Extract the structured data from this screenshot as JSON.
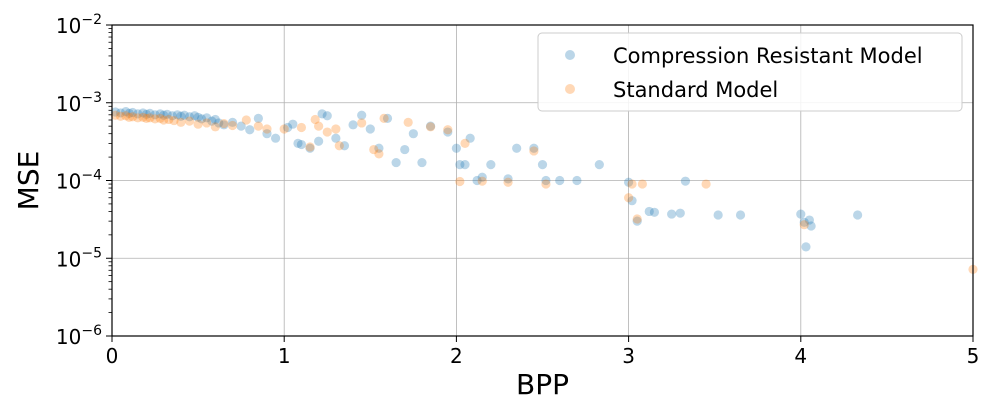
{
  "chart_data": {
    "type": "scatter",
    "xlabel": "BPP",
    "ylabel": "MSE",
    "xlim": [
      0,
      5
    ],
    "ylim": [
      1e-06,
      0.01
    ],
    "yscale": "log",
    "grid": true,
    "legend_position": "top-right",
    "x_ticks": [
      {
        "value": 0,
        "label": "0"
      },
      {
        "value": 1,
        "label": "1"
      },
      {
        "value": 2,
        "label": "2"
      },
      {
        "value": 3,
        "label": "3"
      },
      {
        "value": 4,
        "label": "4"
      },
      {
        "value": 5,
        "label": "5"
      }
    ],
    "y_ticks": [
      {
        "value": 1e-06,
        "base": "10",
        "exp": "−6"
      },
      {
        "value": 1e-05,
        "base": "10",
        "exp": "−5"
      },
      {
        "value": 0.0001,
        "base": "10",
        "exp": "−4"
      },
      {
        "value": 0.001,
        "base": "10",
        "exp": "−3"
      },
      {
        "value": 0.01,
        "base": "10",
        "exp": "−2"
      }
    ],
    "series": [
      {
        "name": "Compression Resistant Model",
        "color": "#1f77b4",
        "points": [
          [
            0.02,
            0.00076
          ],
          [
            0.05,
            0.00074
          ],
          [
            0.08,
            0.00077
          ],
          [
            0.1,
            0.00073
          ],
          [
            0.12,
            0.00075
          ],
          [
            0.15,
            0.00072
          ],
          [
            0.18,
            0.00074
          ],
          [
            0.2,
            0.00071
          ],
          [
            0.22,
            0.00073
          ],
          [
            0.25,
            0.0007
          ],
          [
            0.28,
            0.00072
          ],
          [
            0.3,
            0.00069
          ],
          [
            0.32,
            0.00071
          ],
          [
            0.35,
            0.00068
          ],
          [
            0.38,
            0.0007
          ],
          [
            0.4,
            0.00067
          ],
          [
            0.42,
            0.00069
          ],
          [
            0.45,
            0.00066
          ],
          [
            0.48,
            0.00068
          ],
          [
            0.5,
            0.00065
          ],
          [
            0.52,
            0.00062
          ],
          [
            0.55,
            0.00064
          ],
          [
            0.58,
            0.00058
          ],
          [
            0.6,
            0.00061
          ],
          [
            0.62,
            0.00055
          ],
          [
            0.65,
            0.00052
          ],
          [
            0.7,
            0.00056
          ],
          [
            0.75,
            0.0005
          ],
          [
            0.8,
            0.00045
          ],
          [
            0.85,
            0.00063
          ],
          [
            0.9,
            0.0004
          ],
          [
            0.95,
            0.00035
          ],
          [
            1.02,
            0.00048
          ],
          [
            1.05,
            0.00053
          ],
          [
            1.08,
            0.0003
          ],
          [
            1.1,
            0.00029
          ],
          [
            1.15,
            0.00026
          ],
          [
            1.2,
            0.00032
          ],
          [
            1.22,
            0.00072
          ],
          [
            1.25,
            0.00068
          ],
          [
            1.3,
            0.00035
          ],
          [
            1.35,
            0.00028
          ],
          [
            1.4,
            0.00052
          ],
          [
            1.45,
            0.00069
          ],
          [
            1.5,
            0.00046
          ],
          [
            1.55,
            0.00026
          ],
          [
            1.6,
            0.00063
          ],
          [
            1.65,
            0.00017
          ],
          [
            1.7,
            0.00025
          ],
          [
            1.75,
            0.0004
          ],
          [
            1.8,
            0.00017
          ],
          [
            1.85,
            0.0005
          ],
          [
            1.95,
            0.00042
          ],
          [
            2.0,
            0.00026
          ],
          [
            2.02,
            0.00016
          ],
          [
            2.05,
            0.00016
          ],
          [
            2.08,
            0.00035
          ],
          [
            2.12,
            0.0001
          ],
          [
            2.15,
            0.00011
          ],
          [
            2.2,
            0.00016
          ],
          [
            2.3,
            0.000105
          ],
          [
            2.35,
            0.00026
          ],
          [
            2.45,
            0.00026
          ],
          [
            2.5,
            0.00016
          ],
          [
            2.52,
            0.0001
          ],
          [
            2.6,
            0.0001
          ],
          [
            2.7,
            0.0001
          ],
          [
            2.83,
            0.00016
          ],
          [
            3.0,
            9.5e-05
          ],
          [
            3.02,
            5.5e-05
          ],
          [
            3.05,
            3e-05
          ],
          [
            3.12,
            4e-05
          ],
          [
            3.15,
            3.9e-05
          ],
          [
            3.25,
            3.7e-05
          ],
          [
            3.3,
            3.8e-05
          ],
          [
            3.33,
            9.8e-05
          ],
          [
            3.52,
            3.6e-05
          ],
          [
            3.65,
            3.6e-05
          ],
          [
            4.0,
            3.7e-05
          ],
          [
            4.02,
            2.9e-05
          ],
          [
            4.03,
            1.4e-05
          ],
          [
            4.05,
            3.1e-05
          ],
          [
            4.06,
            2.6e-05
          ],
          [
            4.33,
            3.6e-05
          ]
        ]
      },
      {
        "name": "Standard Model",
        "color": "#ff7f0e",
        "points": [
          [
            0.02,
            0.00069
          ],
          [
            0.05,
            0.00067
          ],
          [
            0.08,
            0.00068
          ],
          [
            0.1,
            0.00065
          ],
          [
            0.12,
            0.00066
          ],
          [
            0.15,
            0.00064
          ],
          [
            0.18,
            0.00065
          ],
          [
            0.2,
            0.00063
          ],
          [
            0.22,
            0.00064
          ],
          [
            0.25,
            0.00062
          ],
          [
            0.28,
            0.00063
          ],
          [
            0.3,
            0.0006
          ],
          [
            0.33,
            0.00061
          ],
          [
            0.36,
            0.00059
          ],
          [
            0.4,
            0.00056
          ],
          [
            0.45,
            0.00058
          ],
          [
            0.5,
            0.00053
          ],
          [
            0.55,
            0.00055
          ],
          [
            0.6,
            0.00049
          ],
          [
            0.65,
            0.00054
          ],
          [
            0.7,
            0.00051
          ],
          [
            0.78,
            0.0006
          ],
          [
            0.85,
            0.0005
          ],
          [
            0.9,
            0.00046
          ],
          [
            1.0,
            0.00046
          ],
          [
            1.1,
            0.00048
          ],
          [
            1.15,
            0.00027
          ],
          [
            1.18,
            0.00061
          ],
          [
            1.2,
            0.0005
          ],
          [
            1.25,
            0.00042
          ],
          [
            1.3,
            0.00046
          ],
          [
            1.32,
            0.00028
          ],
          [
            1.45,
            0.00055
          ],
          [
            1.52,
            0.00025
          ],
          [
            1.55,
            0.00022
          ],
          [
            1.58,
            0.00063
          ],
          [
            1.72,
            0.00056
          ],
          [
            1.85,
            0.00049
          ],
          [
            1.95,
            0.00045
          ],
          [
            2.02,
            9.7e-05
          ],
          [
            2.05,
            0.0003
          ],
          [
            2.15,
            9.8e-05
          ],
          [
            2.3,
            9.5e-05
          ],
          [
            2.45,
            0.00024
          ],
          [
            2.52,
            9e-05
          ],
          [
            3.0,
            6e-05
          ],
          [
            3.02,
            9e-05
          ],
          [
            3.05,
            3.2e-05
          ],
          [
            3.08,
            9e-05
          ],
          [
            3.45,
            9e-05
          ],
          [
            4.02,
            2.7e-05
          ],
          [
            5.0,
            7.2e-06
          ]
        ]
      }
    ]
  }
}
